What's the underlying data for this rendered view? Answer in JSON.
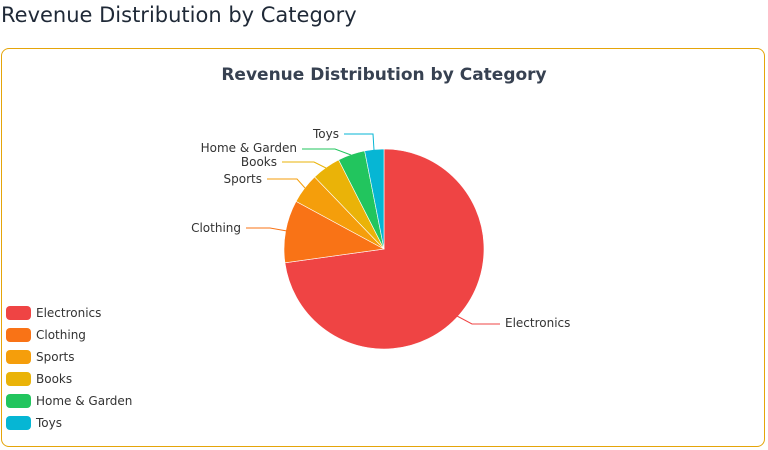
{
  "page": {
    "title": "Revenue Distribution by Category"
  },
  "frame": {
    "border_color": "#e5a50a"
  },
  "chart_data": {
    "type": "pie",
    "title": "Revenue Distribution by Category",
    "categories": [
      "Electronics",
      "Clothing",
      "Sports",
      "Books",
      "Home & Garden",
      "Toys"
    ],
    "values": [
      72.8,
      10.1,
      4.9,
      4.7,
      4.4,
      3.1
    ],
    "colors": [
      "#ef4444",
      "#f97316",
      "#f59e0b",
      "#eab308",
      "#22c55e",
      "#06b6d4"
    ],
    "legend_position": "left-bottom",
    "start_angle": "12 o'clock, clockwise",
    "units": "percent share (estimated from slice angles)"
  },
  "legend": {
    "items": [
      {
        "label": "Electronics",
        "color": "#ef4444"
      },
      {
        "label": "Clothing",
        "color": "#f97316"
      },
      {
        "label": "Sports",
        "color": "#f59e0b"
      },
      {
        "label": "Books",
        "color": "#eab308"
      },
      {
        "label": "Home & Garden",
        "color": "#22c55e"
      },
      {
        "label": "Toys",
        "color": "#06b6d4"
      }
    ]
  },
  "labels": {
    "electronics": "Electronics",
    "clothing": "Clothing",
    "sports": "Sports",
    "books": "Books",
    "home_garden": "Home & Garden",
    "toys": "Toys"
  }
}
